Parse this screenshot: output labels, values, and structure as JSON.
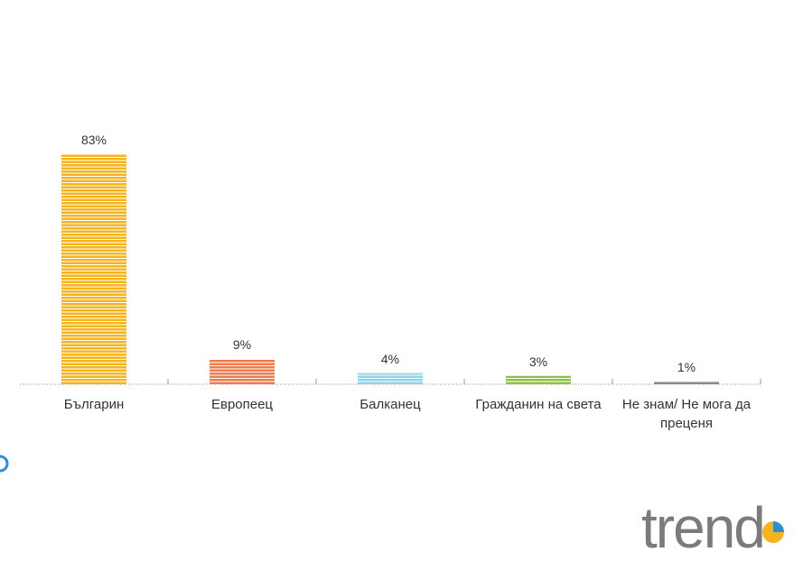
{
  "chart_data": {
    "type": "bar",
    "categories": [
      "Българин",
      "Европеец",
      "Балканец",
      "Гражданин на света",
      "Не знам/ Не мога да преценя"
    ],
    "values": [
      83,
      9,
      4,
      3,
      1
    ],
    "value_labels": [
      "83%",
      "9%",
      "4%",
      "3%",
      "1%"
    ],
    "colors": [
      "#f5b31c",
      "#ec7c4a",
      "#8fd3ef",
      "#8cc43f",
      "#8a8a8a"
    ]
  },
  "logo": "trend"
}
